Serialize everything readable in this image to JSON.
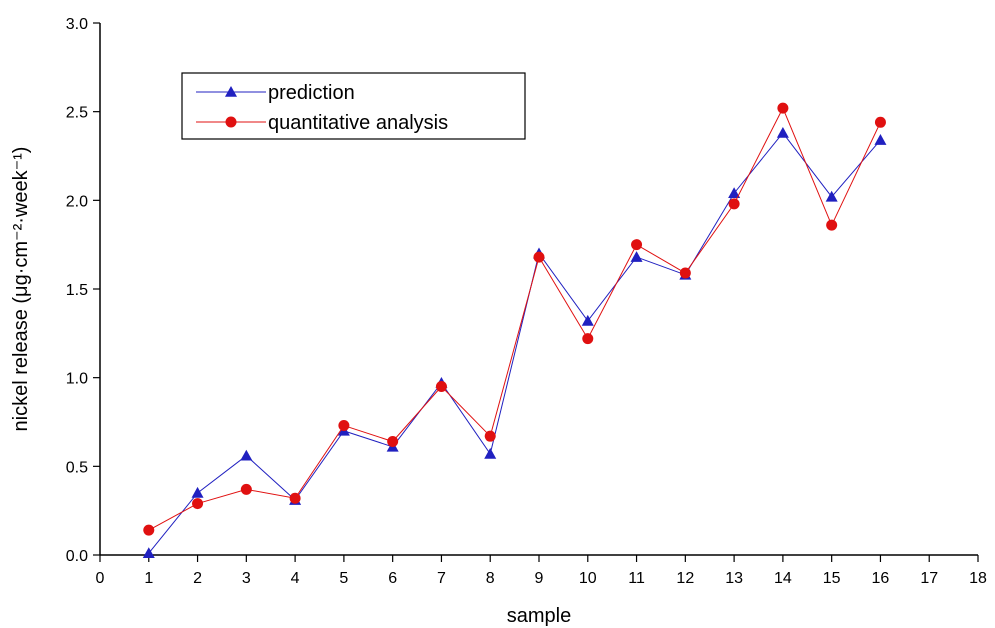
{
  "chart_data": {
    "type": "line",
    "title": "",
    "xlabel": "sample",
    "ylabel": "nickel release (μg·cm⁻²·week⁻¹)",
    "xlim": [
      0,
      18
    ],
    "ylim": [
      0,
      3.0
    ],
    "x_ticks": [
      "0",
      "1",
      "2",
      "3",
      "4",
      "5",
      "6",
      "7",
      "8",
      "9",
      "10",
      "11",
      "12",
      "13",
      "14",
      "15",
      "16",
      "17",
      "18"
    ],
    "y_ticks": [
      "0.0",
      "0.5",
      "1.0",
      "1.5",
      "2.0",
      "2.5",
      "3.0"
    ],
    "grid": false,
    "legend_position": "top-left",
    "x": [
      1,
      2,
      3,
      4,
      5,
      6,
      7,
      8,
      9,
      10,
      11,
      12,
      13,
      14,
      15,
      16
    ],
    "series": [
      {
        "name": "prediction",
        "color": "#2020c0",
        "marker": "triangle",
        "values": [
          0.01,
          0.35,
          0.56,
          0.31,
          0.7,
          0.61,
          0.97,
          0.57,
          1.7,
          1.32,
          1.68,
          1.58,
          2.04,
          2.38,
          2.02,
          2.34
        ]
      },
      {
        "name": "quantitative analysis",
        "color": "#e01010",
        "marker": "circle",
        "values": [
          0.14,
          0.29,
          0.37,
          0.32,
          0.73,
          0.64,
          0.95,
          0.67,
          1.68,
          1.22,
          1.75,
          1.59,
          1.98,
          2.52,
          1.86,
          2.44
        ]
      }
    ]
  }
}
